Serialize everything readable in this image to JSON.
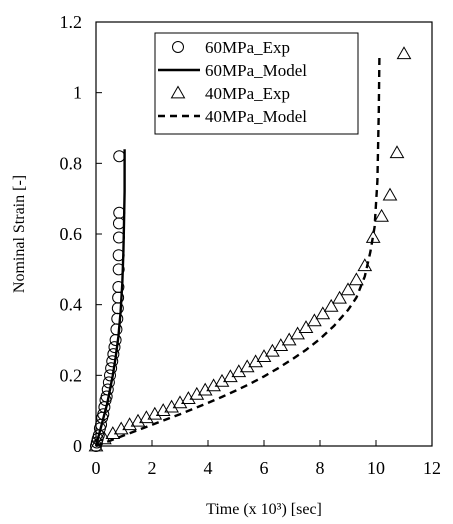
{
  "chart_data": {
    "type": "scatter",
    "xlabel": "Time (x 10³) [sec]",
    "ylabel": "Nominal Strain [-]",
    "xlim": [
      0,
      12
    ],
    "ylim": [
      0,
      1.2
    ],
    "xticks": [
      0,
      2,
      4,
      6,
      8,
      10,
      12
    ],
    "yticks": [
      0,
      0.2,
      0.4,
      0.6,
      0.8,
      1,
      1.2
    ],
    "x_tick_labels": [
      "0",
      "2",
      "4",
      "6",
      "8",
      "10",
      "12"
    ],
    "y_tick_labels": [
      "0",
      "0.2",
      "0.4",
      "0.6",
      "0.8",
      "1",
      "1.2"
    ],
    "grid": false,
    "legend_position": "top-right",
    "series": [
      {
        "name": "60MPa_Exp",
        "style": "marker-circle",
        "x": [
          0.0,
          0.03,
          0.06,
          0.1,
          0.14,
          0.18,
          0.22,
          0.26,
          0.3,
          0.34,
          0.38,
          0.42,
          0.46,
          0.5,
          0.54,
          0.58,
          0.62,
          0.66,
          0.7,
          0.73,
          0.76,
          0.78,
          0.79,
          0.8,
          0.81,
          0.81,
          0.82,
          0.82,
          0.83,
          0.83
        ],
        "y": [
          0.0,
          0.01,
          0.02,
          0.03,
          0.05,
          0.06,
          0.08,
          0.09,
          0.11,
          0.13,
          0.14,
          0.16,
          0.18,
          0.2,
          0.22,
          0.24,
          0.26,
          0.28,
          0.3,
          0.33,
          0.36,
          0.39,
          0.42,
          0.45,
          0.5,
          0.54,
          0.59,
          0.63,
          0.66,
          0.82
        ]
      },
      {
        "name": "60MPa_Model",
        "style": "line-solid",
        "x": [
          0.0,
          0.1,
          0.2,
          0.3,
          0.4,
          0.5,
          0.6,
          0.7,
          0.8,
          0.88,
          0.94,
          0.98,
          1.0,
          1.02,
          1.02
        ],
        "y": [
          0.0,
          0.03,
          0.06,
          0.09,
          0.12,
          0.16,
          0.2,
          0.25,
          0.31,
          0.38,
          0.46,
          0.55,
          0.63,
          0.72,
          0.84
        ]
      },
      {
        "name": "40MPa_Exp",
        "style": "marker-triangle",
        "x": [
          0.0,
          0.3,
          0.6,
          0.9,
          1.2,
          1.5,
          1.8,
          2.1,
          2.4,
          2.7,
          3.0,
          3.3,
          3.6,
          3.9,
          4.2,
          4.5,
          4.8,
          5.1,
          5.4,
          5.7,
          6.0,
          6.3,
          6.6,
          6.9,
          7.2,
          7.5,
          7.8,
          8.1,
          8.4,
          8.7,
          9.0,
          9.3,
          9.6,
          9.9,
          10.2,
          10.5,
          10.75,
          11.0
        ],
        "y": [
          0.0,
          0.02,
          0.035,
          0.048,
          0.06,
          0.07,
          0.08,
          0.09,
          0.1,
          0.11,
          0.122,
          0.134,
          0.146,
          0.158,
          0.17,
          0.183,
          0.196,
          0.21,
          0.224,
          0.238,
          0.253,
          0.268,
          0.284,
          0.3,
          0.317,
          0.335,
          0.354,
          0.374,
          0.395,
          0.418,
          0.442,
          0.47,
          0.51,
          0.59,
          0.65,
          0.71,
          0.83,
          1.11
        ]
      },
      {
        "name": "40MPa_Model",
        "style": "line-dashed",
        "x": [
          0.0,
          0.5,
          1.0,
          1.5,
          2.0,
          2.5,
          3.0,
          3.5,
          4.0,
          4.5,
          5.0,
          5.5,
          6.0,
          6.5,
          7.0,
          7.5,
          8.0,
          8.5,
          9.0,
          9.3,
          9.6,
          9.8,
          9.95,
          10.05,
          10.1,
          10.12
        ],
        "y": [
          0.0,
          0.015,
          0.03,
          0.045,
          0.06,
          0.075,
          0.09,
          0.106,
          0.122,
          0.139,
          0.157,
          0.176,
          0.197,
          0.22,
          0.245,
          0.272,
          0.303,
          0.34,
          0.385,
          0.42,
          0.48,
          0.55,
          0.62,
          0.75,
          0.95,
          1.1
        ]
      }
    ]
  }
}
